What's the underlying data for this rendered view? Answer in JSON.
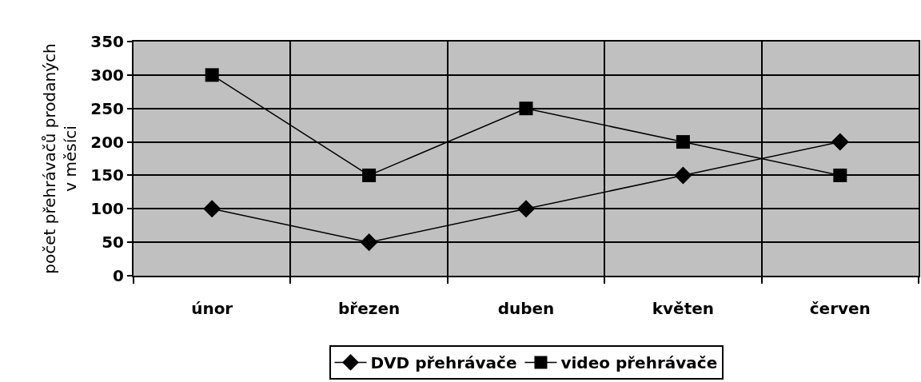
{
  "chart_data": {
    "type": "line",
    "ylabel": "počet přehrávačů prodaných\nv měsíci",
    "categories": [
      "únor",
      "březen",
      "duben",
      "květen",
      "červen"
    ],
    "series": [
      {
        "name": "DVD přehrávače",
        "color": "#000000",
        "marker": "diamond",
        "values": [
          100,
          50,
          100,
          150,
          200
        ]
      },
      {
        "name": "video přehrávače",
        "color": "#000000",
        "marker": "square",
        "values": [
          300,
          150,
          250,
          200,
          150
        ]
      }
    ],
    "ylim": [
      0,
      350
    ],
    "yticks": [
      0,
      50,
      100,
      150,
      200,
      250,
      300,
      350
    ],
    "grid": true,
    "legend": "bottom",
    "line_style": "solid"
  }
}
